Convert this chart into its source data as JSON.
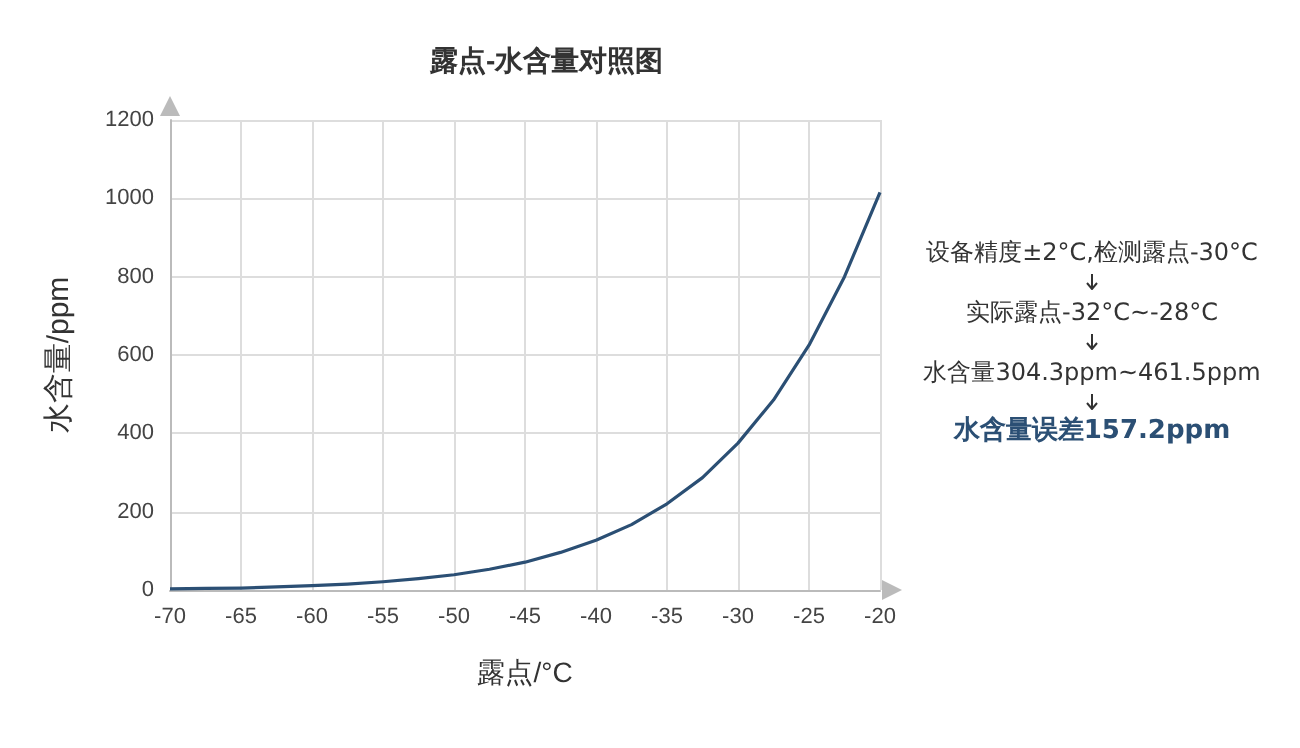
{
  "chart_data": {
    "type": "line",
    "title": "露点-水含量对照图",
    "xlabel": "露点/°C",
    "ylabel": "水含量/ppm",
    "annotations": [
      "设备精度±2°C,检测露点-30°C",
      "实际露点-32°C~-28°C",
      "水含量304.3ppm~461.5ppm",
      "水含量误差157.2ppm"
    ],
    "series": [
      {
        "color": "#2b4f74",
        "x": [
          -70,
          -67.5,
          -65,
          -62.5,
          -60,
          -57.5,
          -55,
          -52.5,
          -50,
          -47.5,
          -45,
          -42.5,
          -40,
          -37.5,
          -35,
          -32.5,
          -30,
          -27.5,
          -25,
          -22.5,
          -20
        ],
        "values": [
          3,
          4,
          5,
          8,
          11,
          15,
          21,
          29,
          39,
          53,
          71,
          96,
          127,
          167,
          220,
          287,
          375,
          485,
          625,
          800,
          1015
        ]
      }
    ],
    "xlim": [
      -70,
      -20
    ],
    "xticks": [
      -70,
      -65,
      -60,
      -55,
      -50,
      -45,
      -40,
      -35,
      -30,
      -25,
      -20
    ],
    "ylim": [
      0,
      1200
    ],
    "yticks": [
      0,
      200,
      400,
      600,
      800,
      1000,
      1200
    ],
    "grid": true,
    "marker": "none",
    "line_style": "solid"
  }
}
